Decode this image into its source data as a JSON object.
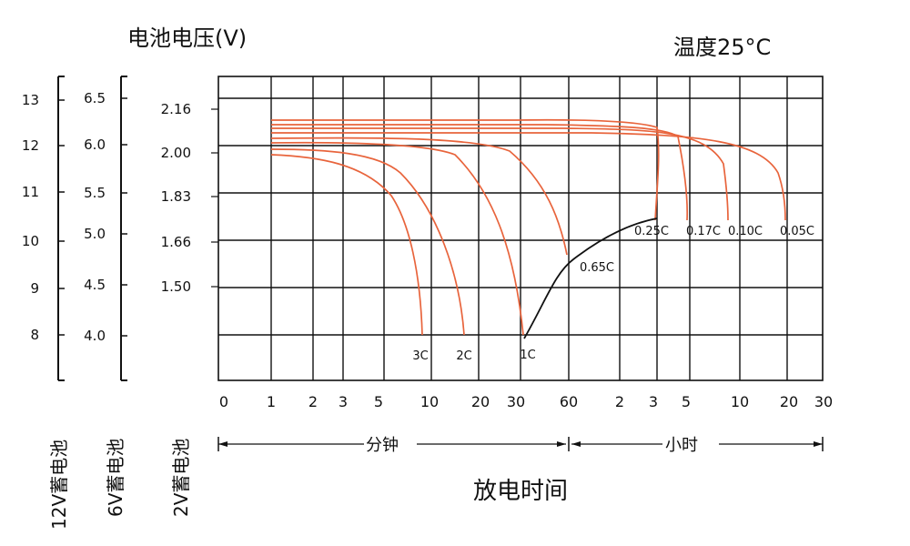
{
  "chart_data": {
    "type": "line",
    "title": "电池电压(V)",
    "temperature_note": "温度25°C",
    "xlabel": "放电时间",
    "x_unit_minutes": "分钟",
    "x_unit_hours": "小时",
    "x_ticks_minutes": [
      "0",
      "1",
      "2",
      "3",
      "5",
      "10",
      "20",
      "30",
      "60"
    ],
    "x_ticks_hours": [
      "2",
      "3",
      "5",
      "10",
      "20",
      "30"
    ],
    "y_axes": [
      {
        "label": "12V蓄电池",
        "ticks": [
          "13",
          "12",
          "11",
          "10",
          "9",
          "8"
        ]
      },
      {
        "label": "6V蓄电池",
        "ticks": [
          "6.5",
          "6.0",
          "5.5",
          "5.0",
          "4.5",
          "4.0"
        ]
      },
      {
        "label": "2V蓄电池",
        "ticks": [
          "2.16",
          "2.00",
          "1.83",
          "1.66",
          "1.50"
        ]
      }
    ],
    "series": [
      {
        "name": "3C",
        "cutoff_2V": 1.33
      },
      {
        "name": "2C",
        "cutoff_2V": 1.33
      },
      {
        "name": "1C",
        "cutoff_2V": 1.33
      },
      {
        "name": "0.65C",
        "cutoff_2V": 1.62
      },
      {
        "name": "0.25C",
        "cutoff_2V": 1.75
      },
      {
        "name": "0.17C",
        "cutoff_2V": 1.75
      },
      {
        "name": "0.10C",
        "cutoff_2V": 1.75
      },
      {
        "name": "0.05C",
        "cutoff_2V": 1.75
      }
    ],
    "colors": {
      "curves": "#e8643c",
      "grid": "#111111",
      "cutoff": "#111111"
    }
  }
}
